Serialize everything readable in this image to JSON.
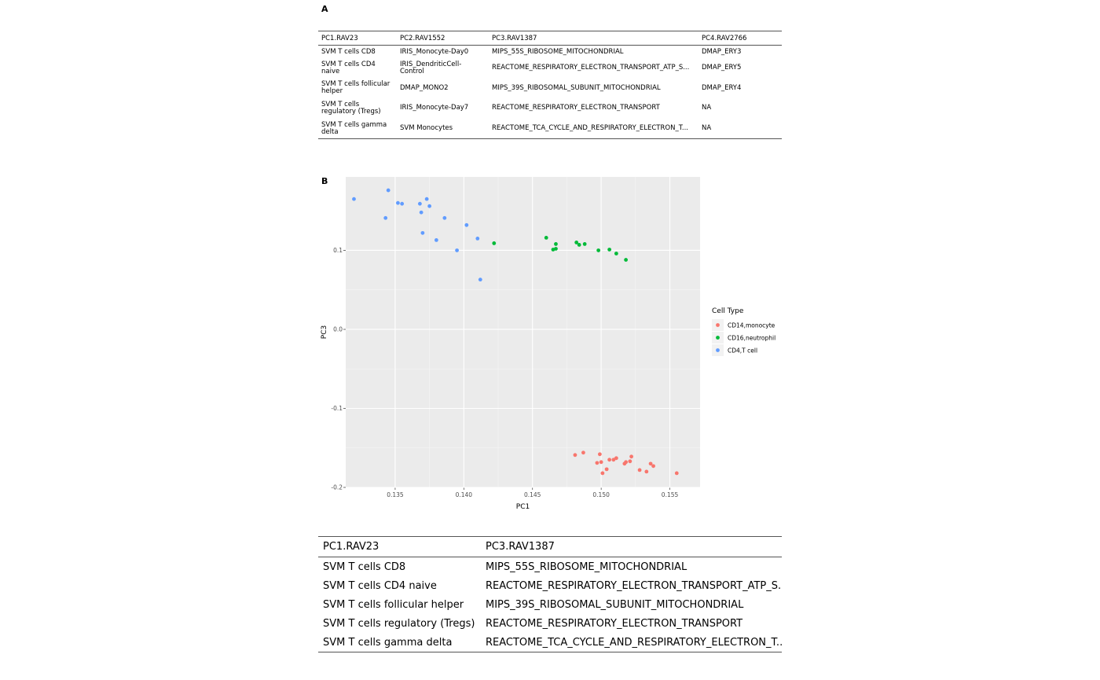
{
  "panel_a": {
    "label": "A",
    "headers": [
      "PC1.RAV23",
      "PC2.RAV1552",
      "PC3.RAV1387",
      "PC4.RAV2766"
    ],
    "rows": [
      [
        "SVM T cells CD8",
        "IRIS_Monocyte-Day0",
        "MIPS_55S_RIBOSOME_MITOCHONDRIAL",
        "DMAP_ERY3"
      ],
      [
        "SVM T cells CD4 naive",
        "IRIS_DendriticCell-Control",
        "REACTOME_RESPIRATORY_ELECTRON_TRANSPORT_ATP_S...",
        "DMAP_ERY5"
      ],
      [
        "SVM T cells follicular helper",
        "DMAP_MONO2",
        "MIPS_39S_RIBOSOMAL_SUBUNIT_MITOCHONDRIAL",
        "DMAP_ERY4"
      ],
      [
        "SVM T cells regulatory (Tregs)",
        "IRIS_Monocyte-Day7",
        "REACTOME_RESPIRATORY_ELECTRON_TRANSPORT",
        "NA"
      ],
      [
        "SVM T cells gamma delta",
        "SVM Monocytes",
        "REACTOME_TCA_CYCLE_AND_RESPIRATORY_ELECTRON_T...",
        "NA"
      ]
    ]
  },
  "panel_b": {
    "label": "B"
  },
  "chart_data": {
    "type": "scatter",
    "xlabel": "PC1",
    "ylabel": "PC3",
    "xlim": [
      0.1314,
      0.1572
    ],
    "ylim": [
      -0.2,
      0.193
    ],
    "xticks": [
      0.135,
      0.14,
      0.145,
      0.15,
      0.155
    ],
    "xtick_labels": [
      "0.135",
      "0.140",
      "0.145",
      "0.150",
      "0.155"
    ],
    "yticks": [
      -0.2,
      -0.1,
      0.0,
      0.1
    ],
    "ytick_labels": [
      "-0.2",
      "-0.1",
      "0.0",
      "0.1"
    ],
    "grid": true,
    "background": "#ebebeb",
    "legend": {
      "title": "Cell Type",
      "placement": "right"
    },
    "series": [
      {
        "name": "CD14,monocyte",
        "color": "#f8766d",
        "points": [
          [
            0.1481,
            -0.159
          ],
          [
            0.1487,
            -0.156
          ],
          [
            0.1497,
            -0.169
          ],
          [
            0.1499,
            -0.158
          ],
          [
            0.15,
            -0.168
          ],
          [
            0.1501,
            -0.182
          ],
          [
            0.1504,
            -0.177
          ],
          [
            0.1506,
            -0.165
          ],
          [
            0.1509,
            -0.165
          ],
          [
            0.1511,
            -0.163
          ],
          [
            0.1517,
            -0.17
          ],
          [
            0.1518,
            -0.168
          ],
          [
            0.1521,
            -0.167
          ],
          [
            0.1522,
            -0.161
          ],
          [
            0.1528,
            -0.178
          ],
          [
            0.1533,
            -0.18
          ],
          [
            0.1536,
            -0.17
          ],
          [
            0.1538,
            -0.173
          ],
          [
            0.1555,
            -0.182
          ]
        ]
      },
      {
        "name": "CD16,neutrophil",
        "color": "#00ba38",
        "points": [
          [
            0.1422,
            0.109
          ],
          [
            0.146,
            0.116
          ],
          [
            0.1465,
            0.101
          ],
          [
            0.1467,
            0.102
          ],
          [
            0.1467,
            0.108
          ],
          [
            0.1482,
            0.11
          ],
          [
            0.1484,
            0.107
          ],
          [
            0.1488,
            0.108
          ],
          [
            0.1498,
            0.1
          ],
          [
            0.1506,
            0.101
          ],
          [
            0.1511,
            0.096
          ],
          [
            0.1518,
            0.088
          ]
        ]
      },
      {
        "name": "CD4,T cell",
        "color": "#619cff",
        "points": [
          [
            0.132,
            0.165
          ],
          [
            0.1343,
            0.141
          ],
          [
            0.1345,
            0.176
          ],
          [
            0.1352,
            0.16
          ],
          [
            0.1355,
            0.159
          ],
          [
            0.1368,
            0.159
          ],
          [
            0.1369,
            0.148
          ],
          [
            0.137,
            0.122
          ],
          [
            0.1373,
            0.165
          ],
          [
            0.1375,
            0.156
          ],
          [
            0.138,
            0.113
          ],
          [
            0.1386,
            0.141
          ],
          [
            0.1395,
            0.1
          ],
          [
            0.1402,
            0.132
          ],
          [
            0.141,
            0.115
          ],
          [
            0.1412,
            0.063
          ]
        ]
      }
    ]
  },
  "panel_c": {
    "headers": [
      "PC1.RAV23",
      "PC3.RAV1387"
    ],
    "rows": [
      [
        "SVM T cells CD8",
        "MIPS_55S_RIBOSOME_MITOCHONDRIAL"
      ],
      [
        "SVM T cells CD4 naive",
        "REACTOME_RESPIRATORY_ELECTRON_TRANSPORT_ATP_S..."
      ],
      [
        "SVM T cells follicular helper",
        "MIPS_39S_RIBOSOMAL_SUBUNIT_MITOCHONDRIAL"
      ],
      [
        "SVM T cells regulatory (Tregs)",
        "REACTOME_RESPIRATORY_ELECTRON_TRANSPORT"
      ],
      [
        "SVM T cells gamma delta",
        "REACTOME_TCA_CYCLE_AND_RESPIRATORY_ELECTRON_T..."
      ]
    ]
  }
}
